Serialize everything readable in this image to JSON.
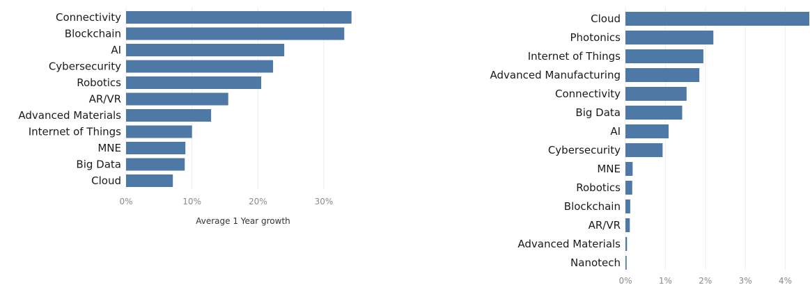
{
  "colors": {
    "bar": "#4e79a7",
    "grid": "#ececec",
    "text": "#1a1a1a",
    "tick": "#8a8a8a"
  },
  "chart_data": [
    {
      "type": "bar",
      "orientation": "horizontal",
      "categories": [
        "Connectivity",
        "Blockchain",
        "AI",
        "Cybersecurity",
        "Robotics",
        "AR/VR",
        "Advanced Materials",
        "Internet of Things",
        "MNE",
        "Big Data",
        "Cloud"
      ],
      "values": [
        34.2,
        33.1,
        24.0,
        22.3,
        20.5,
        15.5,
        12.9,
        10.0,
        9.0,
        8.9,
        7.1
      ],
      "xlabel": "Average 1 Year growth",
      "ticks": [
        0,
        10,
        20,
        30
      ],
      "tick_labels": [
        "0%",
        "10%",
        "20%",
        "30%"
      ],
      "xlim": [
        0,
        35.5
      ],
      "grid": true
    },
    {
      "type": "bar",
      "orientation": "horizontal",
      "categories": [
        "Cloud",
        "Photonics",
        "Internet of Things",
        "Advanced Manufacturing",
        "Connectivity",
        "Big Data",
        "AI",
        "Cybersecurity",
        "MNE",
        "Robotics",
        "Blockchain",
        "AR/VR",
        "Advanced Materials",
        "Nanotech"
      ],
      "values": [
        4.6,
        2.2,
        1.95,
        1.85,
        1.53,
        1.42,
        1.08,
        0.93,
        0.18,
        0.17,
        0.12,
        0.11,
        0.04,
        0.03
      ],
      "xlabel": "",
      "ticks": [
        0,
        1,
        2,
        3,
        4
      ],
      "tick_labels": [
        "0%",
        "1%",
        "2%",
        "3%",
        "4%"
      ],
      "xlim": [
        0,
        4.6
      ],
      "grid": true
    }
  ]
}
